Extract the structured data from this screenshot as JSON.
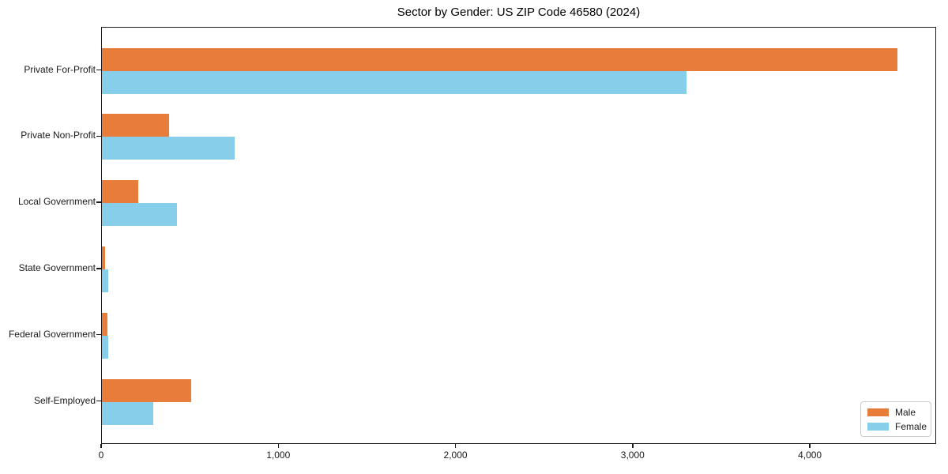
{
  "chart_data": {
    "type": "bar",
    "orientation": "horizontal",
    "title": "Sector by Gender: US ZIP Code 46580 (2024)",
    "xlabel": "",
    "ylabel": "",
    "grid": false,
    "legend_position": "lower right",
    "categories": [
      "Private For-Profit",
      "Private Non-Profit",
      "Local Government",
      "State Government",
      "Federal Government",
      "Self-Employed"
    ],
    "series": [
      {
        "name": "Male",
        "color": "#e87d3b",
        "values": [
          4490,
          380,
          205,
          20,
          30,
          505
        ]
      },
      {
        "name": "Female",
        "color": "#87ceeb",
        "values": [
          3300,
          750,
          425,
          35,
          35,
          290
        ]
      }
    ],
    "xlim": [
      0,
      4713
    ],
    "x_ticks": [
      {
        "value": 0,
        "label": "0"
      },
      {
        "value": 1000,
        "label": "1,000"
      },
      {
        "value": 2000,
        "label": "2,000"
      },
      {
        "value": 3000,
        "label": "3,000"
      },
      {
        "value": 4000,
        "label": "4,000"
      }
    ]
  }
}
